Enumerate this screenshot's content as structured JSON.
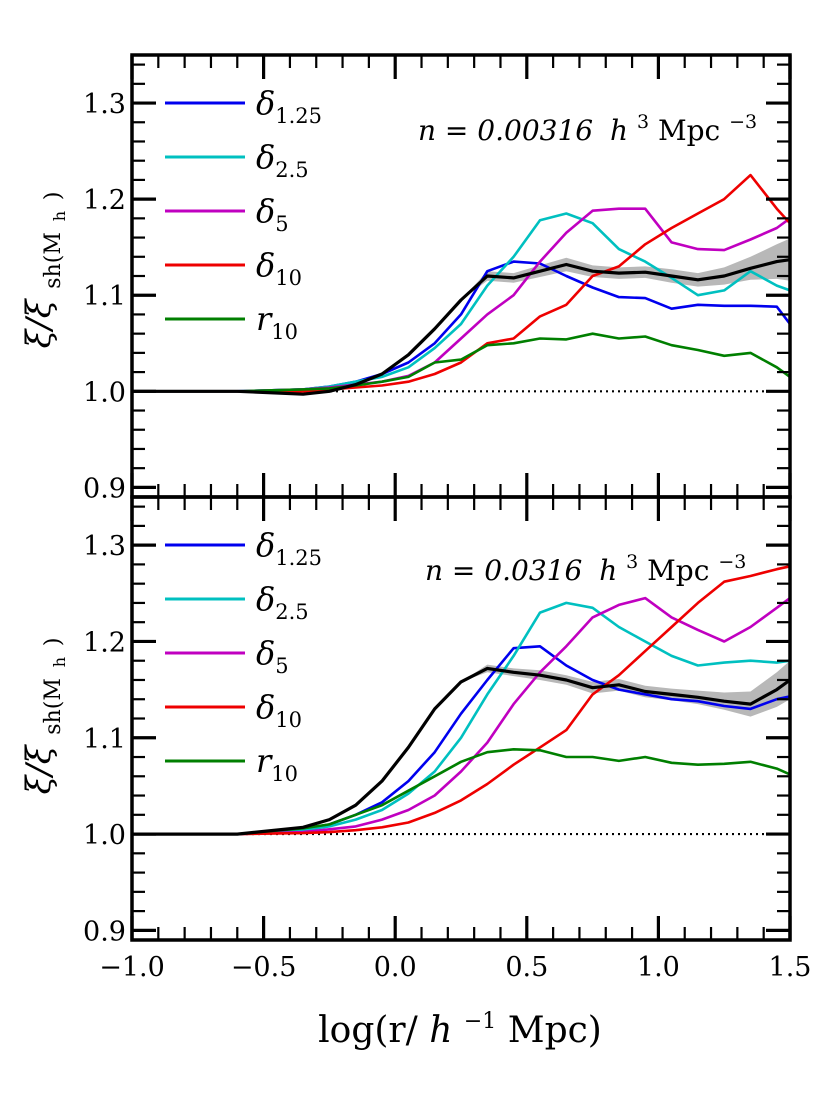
{
  "chart_data": [
    {
      "type": "line",
      "panel": "top",
      "annotation": {
        "n_label": "n = 0.00316",
        "units_main": "h",
        "units_exp1": "3",
        "units_mpc": "Mpc",
        "units_exp2": "−3"
      },
      "ylabel": {
        "main": "ξ/ξ",
        "sub": "sh(M",
        "subsub": "h",
        "close": ")"
      },
      "xlim": [
        -1.0,
        1.5
      ],
      "ylim": [
        0.89,
        1.35
      ],
      "yticks": [
        0.9,
        1.0,
        1.1,
        1.2,
        1.3
      ],
      "ytick_labels": [
        "0.9",
        "1.0",
        "1.1",
        "1.2",
        "1.3"
      ],
      "reference_line": 1.0,
      "legend": [
        {
          "base": "δ",
          "sub": "1.25",
          "color": "#0000ee"
        },
        {
          "base": "δ",
          "sub": "2.5",
          "color": "#00c0c0"
        },
        {
          "base": "δ",
          "sub": "5",
          "color": "#c000c0"
        },
        {
          "base": "δ",
          "sub": "10",
          "color": "#ee0000"
        },
        {
          "base": "r",
          "sub": "10",
          "color": "#007f00"
        }
      ],
      "x": [
        -1.0,
        -0.6,
        -0.35,
        -0.25,
        -0.15,
        -0.05,
        0.05,
        0.15,
        0.25,
        0.35,
        0.45,
        0.55,
        0.65,
        0.75,
        0.85,
        0.95,
        1.05,
        1.15,
        1.25,
        1.35,
        1.45,
        1.5
      ],
      "series": [
        {
          "name": "δ1.25",
          "color": "#0000ee",
          "values": [
            1.0,
            1.0,
            1.002,
            1.005,
            1.01,
            1.018,
            1.03,
            1.05,
            1.08,
            1.125,
            1.135,
            1.133,
            1.12,
            1.108,
            1.098,
            1.097,
            1.086,
            1.09,
            1.089,
            1.089,
            1.088,
            1.07
          ]
        },
        {
          "name": "δ2.5",
          "color": "#00c0c0",
          "values": [
            1.0,
            1.0,
            1.002,
            1.005,
            1.01,
            1.015,
            1.025,
            1.045,
            1.07,
            1.11,
            1.14,
            1.178,
            1.185,
            1.175,
            1.148,
            1.135,
            1.118,
            1.1,
            1.105,
            1.125,
            1.11,
            1.105
          ]
        },
        {
          "name": "δ5",
          "color": "#c000c0",
          "values": [
            1.0,
            1.0,
            1.002,
            1.004,
            1.007,
            1.01,
            1.016,
            1.03,
            1.055,
            1.08,
            1.1,
            1.135,
            1.165,
            1.188,
            1.19,
            1.19,
            1.155,
            1.148,
            1.147,
            1.158,
            1.17,
            1.18
          ]
        },
        {
          "name": "δ10",
          "color": "#ee0000",
          "values": [
            1.0,
            1.0,
            1.0,
            1.002,
            1.004,
            1.006,
            1.01,
            1.018,
            1.03,
            1.05,
            1.055,
            1.078,
            1.09,
            1.12,
            1.13,
            1.153,
            1.17,
            1.185,
            1.2,
            1.225,
            1.19,
            1.175
          ]
        },
        {
          "name": "r10",
          "color": "#007f00",
          "values": [
            1.0,
            1.0,
            1.002,
            1.003,
            1.006,
            1.01,
            1.015,
            1.03,
            1.033,
            1.048,
            1.05,
            1.055,
            1.054,
            1.06,
            1.055,
            1.057,
            1.048,
            1.043,
            1.037,
            1.04,
            1.025,
            1.015
          ]
        },
        {
          "name": "mean",
          "color": "#000000",
          "values": [
            1.0,
            1.0,
            0.997,
            1.0,
            1.007,
            1.018,
            1.038,
            1.065,
            1.095,
            1.12,
            1.118,
            1.125,
            1.132,
            1.125,
            1.123,
            1.124,
            1.12,
            1.116,
            1.12,
            1.128,
            1.135,
            1.137
          ]
        }
      ],
      "band_halfwidth": [
        0,
        0,
        0,
        0,
        0,
        0,
        0,
        0,
        0,
        0.005,
        0.005,
        0.006,
        0.007,
        0.006,
        0.006,
        0.006,
        0.007,
        0.007,
        0.009,
        0.012,
        0.018,
        0.022
      ]
    },
    {
      "type": "line",
      "panel": "bottom",
      "annotation": {
        "n_label": "n = 0.0316",
        "units_main": "h",
        "units_exp1": "3",
        "units_mpc": "Mpc",
        "units_exp2": "−3"
      },
      "ylabel": {
        "main": "ξ/ξ",
        "sub": "sh(M",
        "subsub": "h",
        "close": ")"
      },
      "xlabel": {
        "pre": "log(r/",
        "h": "h",
        "exp": "−1",
        "post": "Mpc)"
      },
      "xlim": [
        -1.0,
        1.5
      ],
      "ylim": [
        0.89,
        1.35
      ],
      "xticks": [
        -1.0,
        -0.5,
        0.0,
        0.5,
        1.0,
        1.5
      ],
      "xtick_labels": [
        "−1.0",
        "−0.5",
        "0.0",
        "0.5",
        "1.0",
        "1.5"
      ],
      "yticks": [
        0.9,
        1.0,
        1.1,
        1.2,
        1.3
      ],
      "ytick_labels": [
        "0.9",
        "1.0",
        "1.1",
        "1.2",
        "1.3"
      ],
      "reference_line": 1.0,
      "legend": [
        {
          "base": "δ",
          "sub": "1.25",
          "color": "#0000ee"
        },
        {
          "base": "δ",
          "sub": "2.5",
          "color": "#00c0c0"
        },
        {
          "base": "δ",
          "sub": "5",
          "color": "#c000c0"
        },
        {
          "base": "δ",
          "sub": "10",
          "color": "#ee0000"
        },
        {
          "base": "r",
          "sub": "10",
          "color": "#007f00"
        }
      ],
      "x": [
        -1.0,
        -0.6,
        -0.35,
        -0.25,
        -0.15,
        -0.05,
        0.05,
        0.15,
        0.25,
        0.35,
        0.45,
        0.55,
        0.65,
        0.75,
        0.85,
        0.95,
        1.05,
        1.15,
        1.25,
        1.35,
        1.45,
        1.5
      ],
      "series": [
        {
          "name": "δ1.25",
          "color": "#0000ee",
          "values": [
            1.0,
            1.0,
            1.005,
            1.01,
            1.02,
            1.033,
            1.055,
            1.085,
            1.125,
            1.16,
            1.193,
            1.195,
            1.175,
            1.16,
            1.15,
            1.145,
            1.14,
            1.138,
            1.133,
            1.13,
            1.14,
            1.143
          ]
        },
        {
          "name": "δ2.5",
          "color": "#00c0c0",
          "values": [
            1.0,
            1.0,
            1.004,
            1.008,
            1.015,
            1.025,
            1.042,
            1.065,
            1.1,
            1.145,
            1.185,
            1.23,
            1.24,
            1.235,
            1.215,
            1.2,
            1.185,
            1.175,
            1.178,
            1.18,
            1.178,
            1.18
          ]
        },
        {
          "name": "δ5",
          "color": "#c000c0",
          "values": [
            1.0,
            1.0,
            1.002,
            1.005,
            1.008,
            1.015,
            1.025,
            1.04,
            1.065,
            1.095,
            1.135,
            1.168,
            1.195,
            1.225,
            1.238,
            1.245,
            1.225,
            1.212,
            1.2,
            1.215,
            1.235,
            1.245
          ]
        },
        {
          "name": "δ10",
          "color": "#ee0000",
          "values": [
            1.0,
            1.0,
            1.001,
            1.002,
            1.004,
            1.007,
            1.012,
            1.022,
            1.035,
            1.052,
            1.072,
            1.09,
            1.108,
            1.145,
            1.165,
            1.19,
            1.215,
            1.24,
            1.262,
            1.268,
            1.275,
            1.278
          ]
        },
        {
          "name": "r10",
          "color": "#007f00",
          "values": [
            1.0,
            1.0,
            1.006,
            1.01,
            1.02,
            1.03,
            1.045,
            1.06,
            1.075,
            1.085,
            1.088,
            1.087,
            1.08,
            1.08,
            1.076,
            1.08,
            1.074,
            1.072,
            1.073,
            1.075,
            1.068,
            1.062
          ]
        },
        {
          "name": "mean",
          "color": "#000000",
          "values": [
            1.0,
            1.0,
            1.007,
            1.015,
            1.03,
            1.055,
            1.09,
            1.13,
            1.158,
            1.172,
            1.168,
            1.165,
            1.16,
            1.152,
            1.155,
            1.148,
            1.145,
            1.142,
            1.138,
            1.135,
            1.15,
            1.16
          ]
        }
      ],
      "band_halfwidth": [
        0,
        0,
        0,
        0,
        0,
        0,
        0,
        0,
        0,
        0.004,
        0.004,
        0.005,
        0.005,
        0.006,
        0.006,
        0.006,
        0.006,
        0.007,
        0.009,
        0.013,
        0.018,
        0.02
      ]
    }
  ]
}
